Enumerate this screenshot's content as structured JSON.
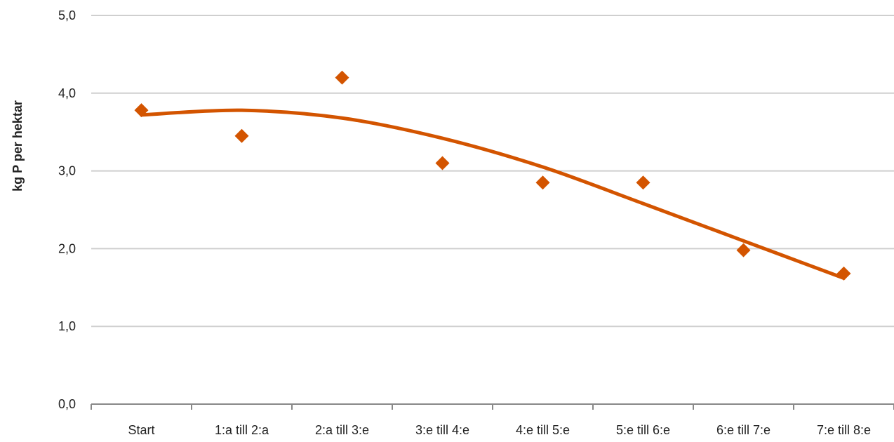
{
  "chart_data": {
    "type": "scatter",
    "title": "",
    "xlabel": "",
    "ylabel": "kg P per hektar",
    "categories": [
      "Start",
      "1:a till 2:a",
      "2:a till 3:e",
      "3:e till 4:e",
      "4:e till 5:e",
      "5:e till 6:e",
      "6:e till 7:e",
      "7:e till 8:e"
    ],
    "y_ticks": [
      "0,0",
      "1,0",
      "2,0",
      "3,0",
      "4,0",
      "5,0"
    ],
    "ylim": [
      0,
      5
    ],
    "grid": true,
    "legend": "none",
    "colors": {
      "series": "#d35400",
      "grid": "#cfcfcf",
      "axis": "#888888"
    },
    "series": [
      {
        "values": [
          3.78,
          3.45,
          4.2,
          3.1,
          2.85,
          2.85,
          1.98,
          1.68
        ]
      }
    ],
    "trendline": {
      "type": "polynomial",
      "values": [
        3.72,
        3.78,
        3.68,
        3.42,
        3.05,
        2.58,
        2.1,
        1.62
      ]
    }
  }
}
